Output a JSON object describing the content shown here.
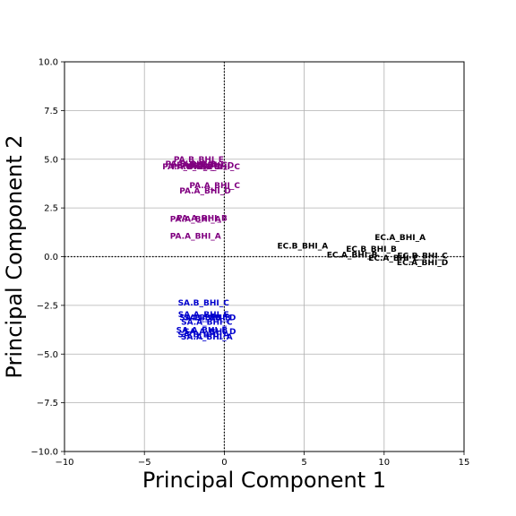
{
  "chart_data": {
    "type": "scatter",
    "title": "",
    "xlabel": "Principal Component 1",
    "ylabel": "Principal Component 2",
    "xlim": [
      -10,
      15
    ],
    "ylim": [
      -10,
      10
    ],
    "xticks": [
      -10,
      -5,
      0,
      5,
      10,
      15
    ],
    "yticks": [
      -10.0,
      -7.5,
      -5.0,
      -2.5,
      0.0,
      2.5,
      5.0,
      7.5,
      10.0
    ],
    "xtick_labels": [
      "−10",
      "−5",
      "0",
      "5",
      "10",
      "15"
    ],
    "ytick_labels": [
      "−10.0",
      "−7.5",
      "−5.0",
      "−2.5",
      "0.0",
      "2.5",
      "5.0",
      "7.5",
      "10.0"
    ],
    "grid": true,
    "zero_lines": true,
    "series": [
      {
        "color": "#800080",
        "points": [
          {
            "label": "PA.B_BHI_E",
            "x": -1.6,
            "y": 5.0
          },
          {
            "label": "PA.B_BHI_B",
            "x": -2.1,
            "y": 4.75
          },
          {
            "label": "PA.B_BHI_C",
            "x": -1.4,
            "y": 4.72
          },
          {
            "label": "PA.B_BHI_D",
            "x": -1.0,
            "y": 4.68
          },
          {
            "label": "PA.A_BHI_E",
            "x": -2.3,
            "y": 4.62
          },
          {
            "label": "PA.B_BHI_A",
            "x": -1.7,
            "y": 4.62
          },
          {
            "label": "PA.A_BHI_C",
            "x": -0.6,
            "y": 4.62
          },
          {
            "label": "PA.A_BHI_C",
            "x": -0.6,
            "y": 3.65
          },
          {
            "label": "PA.A_BHI_D",
            "x": -1.2,
            "y": 3.38
          },
          {
            "label": "PA.A_BHI_B",
            "x": -1.4,
            "y": 1.98
          },
          {
            "label": "PA.A_BHI_A",
            "x": -1.8,
            "y": 1.92
          },
          {
            "label": "PA.A_BHI_A",
            "x": -1.8,
            "y": 1.05
          }
        ]
      },
      {
        "color": "#000000",
        "points": [
          {
            "label": "EC.A_BHI_A",
            "x": 11.0,
            "y": 1.0
          },
          {
            "label": "EC.B_BHI_A",
            "x": 4.9,
            "y": 0.55
          },
          {
            "label": "EC.B_BHI_B",
            "x": 9.2,
            "y": 0.4
          },
          {
            "label": "EC.A_BHI_B",
            "x": 8.0,
            "y": 0.1
          },
          {
            "label": "EC.B_BHI_C",
            "x": 12.4,
            "y": 0.05
          },
          {
            "label": "EC.A_BHI_C",
            "x": 10.6,
            "y": -0.08
          },
          {
            "label": "EC.A_BHI_D",
            "x": 12.4,
            "y": -0.3
          }
        ]
      },
      {
        "color": "#0000cd",
        "points": [
          {
            "label": "SA.B_BHI_C",
            "x": -1.3,
            "y": -2.37
          },
          {
            "label": "SA.A_BHI_E",
            "x": -1.3,
            "y": -2.97
          },
          {
            "label": "SA.B_BHI_B",
            "x": -1.2,
            "y": -3.12
          },
          {
            "label": "SA.B_BHI_D",
            "x": -0.9,
            "y": -3.12
          },
          {
            "label": "SA.A_BHI_C",
            "x": -1.1,
            "y": -3.35
          },
          {
            "label": "SA.A_BHI_B",
            "x": -1.4,
            "y": -3.77
          },
          {
            "label": "SA.A_BHI_D",
            "x": -0.9,
            "y": -3.85
          },
          {
            "label": "SA.B_BHI_A",
            "x": -1.3,
            "y": -4.0
          },
          {
            "label": "SA.A_BHI_A",
            "x": -1.1,
            "y": -4.12
          }
        ]
      }
    ]
  }
}
